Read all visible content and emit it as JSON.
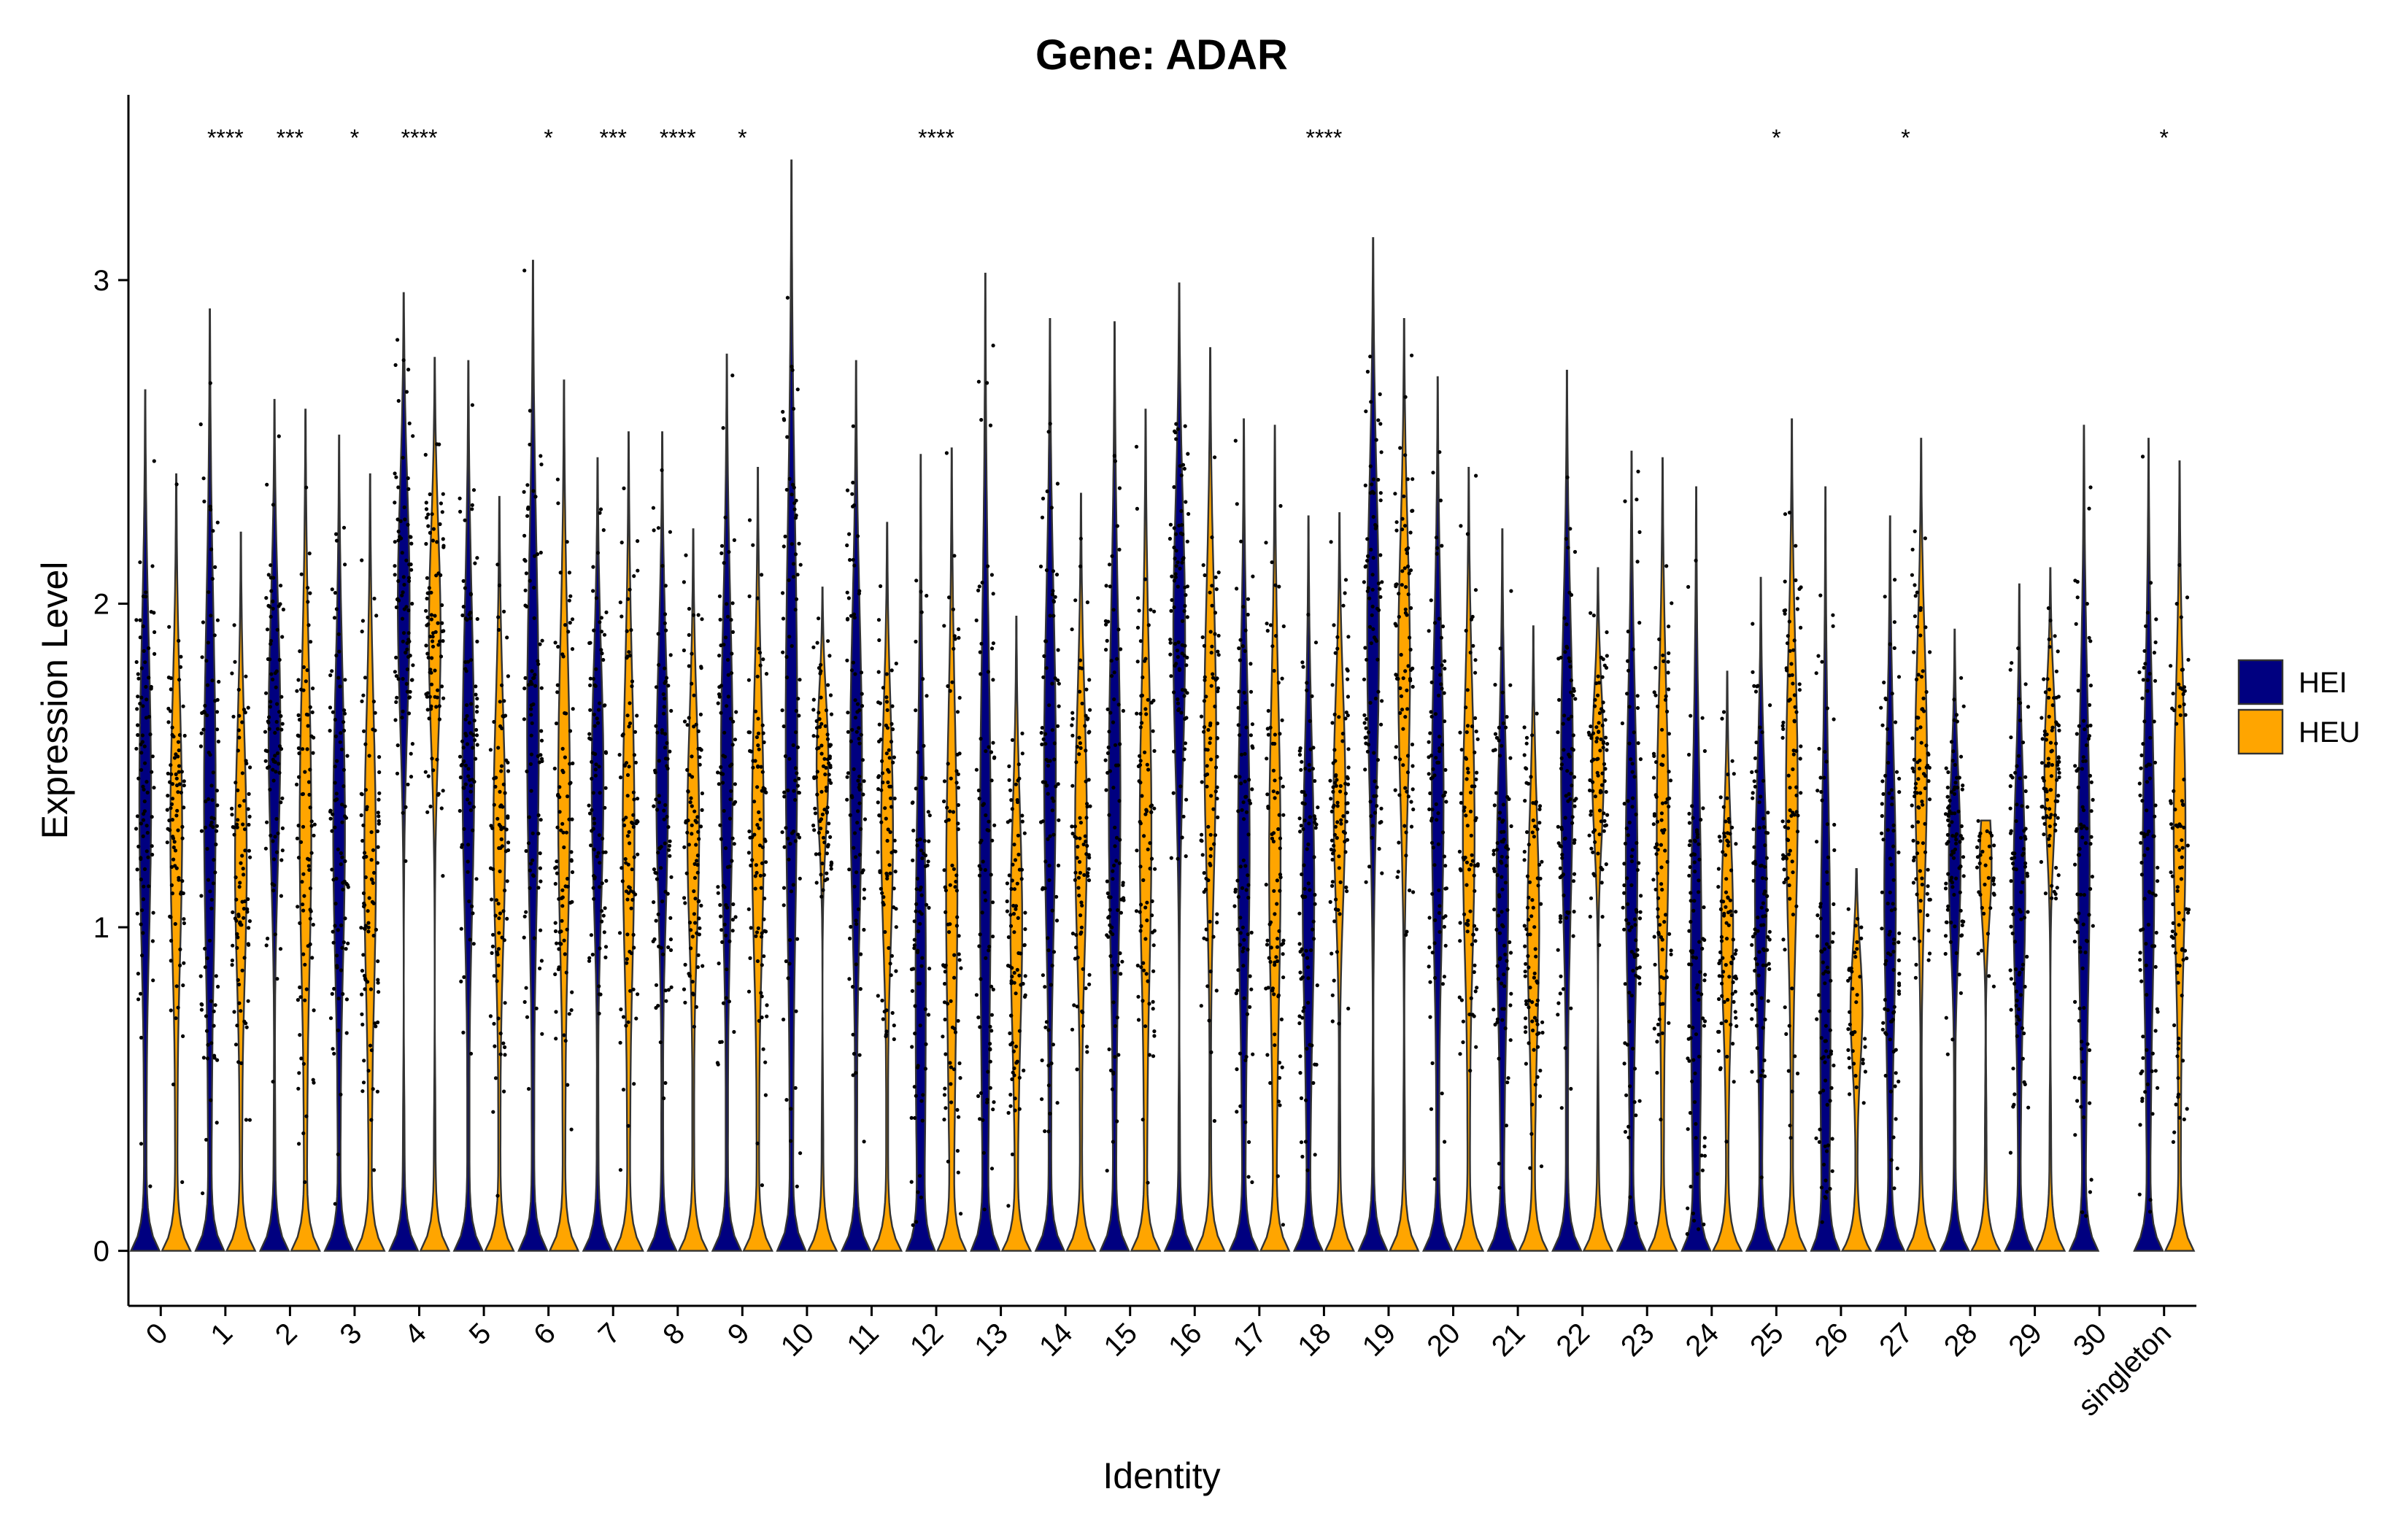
{
  "chart_data": {
    "type": "violin",
    "title": "Gene: ADAR",
    "xlabel": "Identity",
    "ylabel": "Expression Level",
    "ylim": [
      -0.17,
      3.55
    ],
    "yticks": [
      "0",
      "1",
      "2",
      "3"
    ],
    "grid": false,
    "legend_placement": "right",
    "categories": [
      "0",
      "1",
      "2",
      "3",
      "4",
      "5",
      "6",
      "7",
      "8",
      "9",
      "10",
      "11",
      "12",
      "13",
      "14",
      "15",
      "16",
      "17",
      "18",
      "19",
      "20",
      "21",
      "22",
      "23",
      "24",
      "25",
      "26",
      "27",
      "28",
      "29",
      "30",
      "singleton"
    ],
    "significance": [
      "",
      "****",
      "***",
      "*",
      "****",
      "",
      "*",
      "***",
      "****",
      "*",
      "",
      "",
      "****",
      "",
      "",
      "",
      "",
      "",
      "****",
      "",
      "",
      "",
      "",
      "",
      "",
      "*",
      "",
      "*",
      "",
      "",
      "",
      "*"
    ],
    "series": [
      {
        "name": "HEI",
        "color": "#000080",
        "max": [
          2.66,
          2.91,
          2.63,
          2.52,
          2.96,
          2.75,
          3.06,
          2.45,
          2.53,
          2.77,
          3.37,
          2.75,
          2.46,
          3.02,
          2.88,
          2.87,
          2.99,
          2.57,
          2.27,
          3.13,
          2.7,
          2.23,
          2.72,
          2.47,
          2.36,
          2.08,
          2.36,
          2.27,
          1.92,
          2.06,
          2.55,
          2.51
        ],
        "center": [
          1.4,
          1.4,
          1.6,
          1.3,
          2.0,
          1.5,
          1.6,
          1.45,
          1.45,
          1.5,
          1.6,
          1.5,
          0.85,
          1.2,
          1.5,
          1.4,
          1.9,
          1.25,
          1.1,
          1.9,
          1.4,
          1.1,
          1.5,
          1.2,
          0.9,
          1.1,
          0.8,
          1.1,
          1.2,
          1.1,
          1.2,
          1.2
        ]
      },
      {
        "name": "HEU",
        "color": "#FFA500",
        "max": [
          2.4,
          2.22,
          2.6,
          2.4,
          2.76,
          2.33,
          2.69,
          2.53,
          2.23,
          2.42,
          2.05,
          2.25,
          2.48,
          1.96,
          2.34,
          2.6,
          2.79,
          2.55,
          2.28,
          2.88,
          2.42,
          1.93,
          2.11,
          2.45,
          1.79,
          2.57,
          1.18,
          2.51,
          1.33,
          2.11,
          0.0,
          2.44
        ],
        "center": [
          1.3,
          1.2,
          1.3,
          1.2,
          1.9,
          1.3,
          1.4,
          1.3,
          1.3,
          1.3,
          1.5,
          1.3,
          1.1,
          1.0,
          1.3,
          1.3,
          1.6,
          1.2,
          1.4,
          1.8,
          1.3,
          1.0,
          1.5,
          1.3,
          1.0,
          1.4,
          0.75,
          1.5,
          1.2,
          1.5,
          0.0,
          1.3
        ]
      }
    ]
  }
}
